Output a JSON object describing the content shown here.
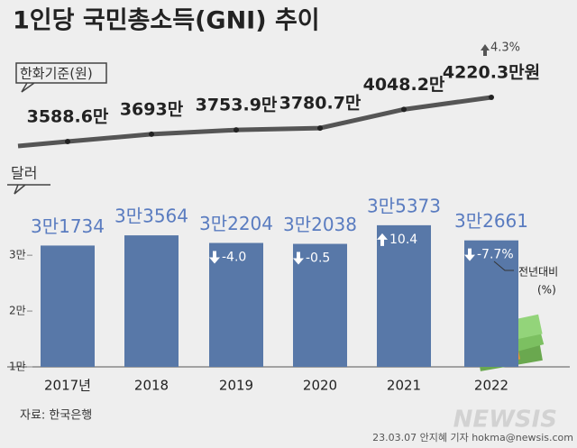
{
  "title": "1인당 국민총소득(GNI) 추이",
  "source": "자료: 한국은행",
  "credit": "23.03.07 안지혜 기자 hokma@newsis.com",
  "watermark": "NEWSIS",
  "chart_data": [
    {
      "type": "line",
      "label": "한화기준(원)",
      "categories": [
        "2017년",
        "2018",
        "2019",
        "2020",
        "2021",
        "2022"
      ],
      "values": [
        3588.6,
        3693,
        3753.9,
        3780.7,
        4048.2,
        4220.3
      ],
      "value_labels": [
        "3588.6만",
        "3693만",
        "3753.9만",
        "3780.7만",
        "4048.2만",
        "4220.3만원"
      ],
      "annotation": "4.3%",
      "color": "#555555"
    },
    {
      "type": "bar",
      "label": "달러",
      "categories": [
        "2017년",
        "2018",
        "2019",
        "2020",
        "2021",
        "2022"
      ],
      "values": [
        31734,
        33564,
        32204,
        32038,
        35373,
        32661
      ],
      "value_labels": [
        "3만1734",
        "3만3564",
        "3만2204",
        "3만2038",
        "3만5373",
        "3만2661"
      ],
      "changes": [
        null,
        null,
        -4.0,
        -0.5,
        10.4,
        -7.7
      ],
      "change_labels": [
        null,
        null,
        "-4.0",
        "-0.5",
        "10.4",
        "-7.7%"
      ],
      "change_note": "전년대비",
      "change_unit": "(%)",
      "color": "#5878a8",
      "ylim": [
        10000,
        36000
      ],
      "yticks": [
        {
          "value": 10000,
          "label": "1만"
        },
        {
          "value": 20000,
          "label": "2만"
        },
        {
          "value": 30000,
          "label": "3만"
        }
      ]
    }
  ]
}
